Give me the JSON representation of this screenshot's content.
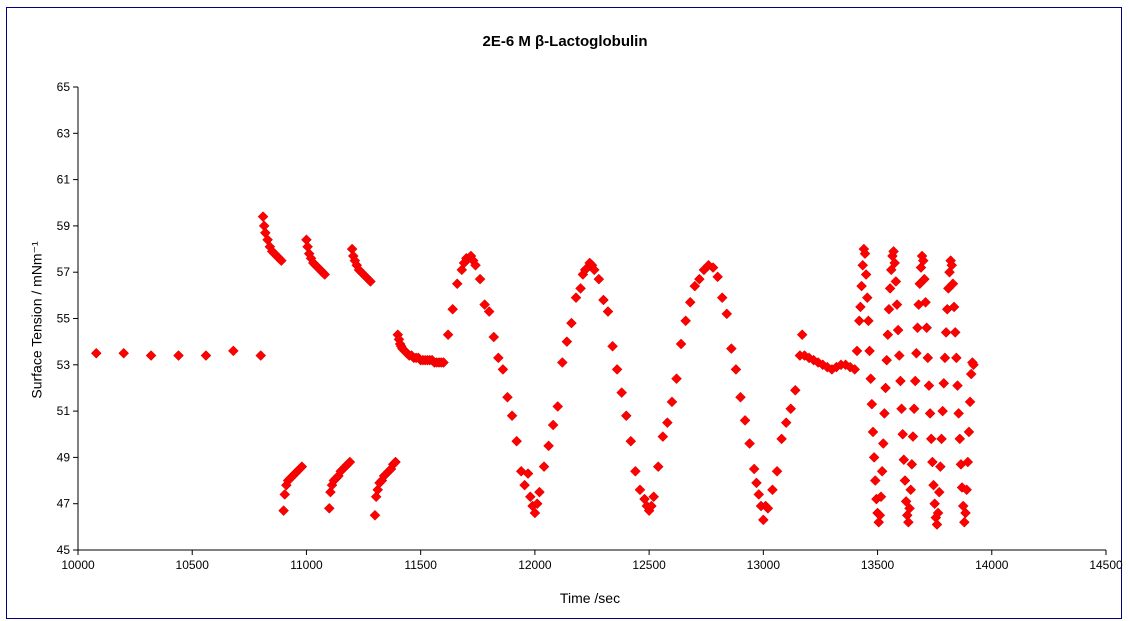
{
  "chart_data": {
    "type": "scatter",
    "title": "2E-6 M β-Lactoglobulin",
    "xlabel": "Time /sec",
    "ylabel": "Surface Tension / mNm⁻¹",
    "xlim": [
      10000,
      14500
    ],
    "ylim": [
      45,
      65
    ],
    "x_ticks": [
      10000,
      10500,
      11000,
      11500,
      12000,
      12500,
      13000,
      13500,
      14000,
      14500
    ],
    "y_ticks": [
      45,
      47,
      49,
      51,
      53,
      55,
      57,
      59,
      61,
      63,
      65
    ],
    "marker": "diamond",
    "marker_color": "#ff0000",
    "grid": false,
    "legend": "none",
    "series": [
      {
        "points": [
          [
            10080,
            53.5
          ],
          [
            10200,
            53.5
          ],
          [
            10320,
            53.4
          ],
          [
            10440,
            53.4
          ],
          [
            10560,
            53.4
          ],
          [
            10680,
            53.6
          ],
          [
            10800,
            53.4
          ],
          [
            10810,
            59.4
          ],
          [
            10815,
            59.0
          ],
          [
            10820,
            58.7
          ],
          [
            10830,
            58.4
          ],
          [
            10840,
            58.1
          ],
          [
            10850,
            57.9
          ],
          [
            10860,
            57.8
          ],
          [
            10870,
            57.7
          ],
          [
            10880,
            57.6
          ],
          [
            10890,
            57.5
          ],
          [
            11000,
            58.4
          ],
          [
            11005,
            58.1
          ],
          [
            11012,
            57.8
          ],
          [
            11020,
            57.6
          ],
          [
            11030,
            57.4
          ],
          [
            11040,
            57.3
          ],
          [
            11050,
            57.2
          ],
          [
            11060,
            57.1
          ],
          [
            11070,
            57.0
          ],
          [
            11080,
            56.9
          ],
          [
            11200,
            58.0
          ],
          [
            11205,
            57.7
          ],
          [
            11212,
            57.5
          ],
          [
            11220,
            57.3
          ],
          [
            11230,
            57.1
          ],
          [
            11240,
            57.0
          ],
          [
            11250,
            56.9
          ],
          [
            11260,
            56.8
          ],
          [
            11270,
            56.7
          ],
          [
            11280,
            56.6
          ],
          [
            10900,
            46.7
          ],
          [
            10905,
            47.4
          ],
          [
            10912,
            47.8
          ],
          [
            10920,
            48.0
          ],
          [
            10930,
            48.1
          ],
          [
            10940,
            48.2
          ],
          [
            10950,
            48.3
          ],
          [
            10960,
            48.4
          ],
          [
            10970,
            48.5
          ],
          [
            10980,
            48.6
          ],
          [
            11100,
            46.8
          ],
          [
            11105,
            47.5
          ],
          [
            11112,
            47.8
          ],
          [
            11120,
            48.0
          ],
          [
            11130,
            48.1
          ],
          [
            11140,
            48.2
          ],
          [
            11150,
            48.4
          ],
          [
            11160,
            48.5
          ],
          [
            11170,
            48.6
          ],
          [
            11180,
            48.7
          ],
          [
            11190,
            48.8
          ],
          [
            11300,
            46.5
          ],
          [
            11305,
            47.3
          ],
          [
            11312,
            47.6
          ],
          [
            11320,
            47.9
          ],
          [
            11330,
            48.0
          ],
          [
            11340,
            48.2
          ],
          [
            11350,
            48.3
          ],
          [
            11360,
            48.4
          ],
          [
            11370,
            48.5
          ],
          [
            11380,
            48.7
          ],
          [
            11390,
            48.8
          ],
          [
            11400,
            54.3
          ],
          [
            11405,
            54.1
          ],
          [
            11410,
            53.9
          ],
          [
            11415,
            53.8
          ],
          [
            11420,
            53.7
          ],
          [
            11430,
            53.6
          ],
          [
            11440,
            53.5
          ],
          [
            11450,
            53.4
          ],
          [
            11460,
            53.4
          ],
          [
            11470,
            53.3
          ],
          [
            11480,
            53.3
          ],
          [
            11490,
            53.3
          ],
          [
            11500,
            53.2
          ],
          [
            11510,
            53.2
          ],
          [
            11520,
            53.2
          ],
          [
            11530,
            53.2
          ],
          [
            11540,
            53.2
          ],
          [
            11550,
            53.2
          ],
          [
            11560,
            53.1
          ],
          [
            11570,
            53.1
          ],
          [
            11580,
            53.1
          ],
          [
            11590,
            53.1
          ],
          [
            11600,
            53.1
          ],
          [
            11620,
            54.3
          ],
          [
            11640,
            55.4
          ],
          [
            11660,
            56.5
          ],
          [
            11680,
            57.1
          ],
          [
            11690,
            57.4
          ],
          [
            11700,
            57.6
          ],
          [
            11710,
            57.6
          ],
          [
            11720,
            57.7
          ],
          [
            11730,
            57.5
          ],
          [
            11740,
            57.3
          ],
          [
            11760,
            56.7
          ],
          [
            11780,
            55.6
          ],
          [
            11800,
            55.3
          ],
          [
            11820,
            54.2
          ],
          [
            11840,
            53.3
          ],
          [
            11860,
            52.8
          ],
          [
            11880,
            51.6
          ],
          [
            11900,
            50.8
          ],
          [
            11920,
            49.7
          ],
          [
            11940,
            48.4
          ],
          [
            11955,
            47.8
          ],
          [
            11970,
            48.3
          ],
          [
            11980,
            47.3
          ],
          [
            11990,
            46.9
          ],
          [
            12000,
            46.6
          ],
          [
            12010,
            47.0
          ],
          [
            12020,
            47.5
          ],
          [
            12040,
            48.6
          ],
          [
            12060,
            49.5
          ],
          [
            12080,
            50.4
          ],
          [
            12100,
            51.2
          ],
          [
            12120,
            53.1
          ],
          [
            12140,
            54.0
          ],
          [
            12160,
            54.8
          ],
          [
            12180,
            55.9
          ],
          [
            12200,
            56.3
          ],
          [
            12210,
            56.9
          ],
          [
            12220,
            57.1
          ],
          [
            12230,
            57.2
          ],
          [
            12240,
            57.4
          ],
          [
            12250,
            57.3
          ],
          [
            12260,
            57.1
          ],
          [
            12280,
            56.7
          ],
          [
            12300,
            55.8
          ],
          [
            12320,
            55.3
          ],
          [
            12340,
            53.8
          ],
          [
            12360,
            52.8
          ],
          [
            12380,
            51.8
          ],
          [
            12400,
            50.8
          ],
          [
            12420,
            49.7
          ],
          [
            12440,
            48.4
          ],
          [
            12460,
            47.6
          ],
          [
            12480,
            47.2
          ],
          [
            12490,
            46.9
          ],
          [
            12500,
            46.7
          ],
          [
            12510,
            46.9
          ],
          [
            12520,
            47.3
          ],
          [
            12540,
            48.6
          ],
          [
            12560,
            49.9
          ],
          [
            12580,
            50.5
          ],
          [
            12600,
            51.4
          ],
          [
            12620,
            52.4
          ],
          [
            12640,
            53.9
          ],
          [
            12660,
            54.9
          ],
          [
            12680,
            55.7
          ],
          [
            12700,
            56.4
          ],
          [
            12720,
            56.7
          ],
          [
            12740,
            57.1
          ],
          [
            12760,
            57.3
          ],
          [
            12780,
            57.2
          ],
          [
            12800,
            56.8
          ],
          [
            12820,
            55.9
          ],
          [
            12840,
            55.2
          ],
          [
            12860,
            53.7
          ],
          [
            12880,
            52.8
          ],
          [
            12900,
            51.6
          ],
          [
            12920,
            50.6
          ],
          [
            12940,
            49.6
          ],
          [
            12960,
            48.5
          ],
          [
            12970,
            47.9
          ],
          [
            12980,
            47.4
          ],
          [
            12990,
            46.9
          ],
          [
            13000,
            46.3
          ],
          [
            13010,
            46.9
          ],
          [
            13020,
            46.8
          ],
          [
            13040,
            47.6
          ],
          [
            13060,
            48.4
          ],
          [
            13080,
            49.8
          ],
          [
            13100,
            50.5
          ],
          [
            13120,
            51.1
          ],
          [
            13140,
            51.9
          ],
          [
            13160,
            53.4
          ],
          [
            13170,
            54.3
          ],
          [
            13180,
            53.4
          ],
          [
            13200,
            53.3
          ],
          [
            13220,
            53.2
          ],
          [
            13240,
            53.1
          ],
          [
            13260,
            53.0
          ],
          [
            13280,
            52.9
          ],
          [
            13300,
            52.8
          ],
          [
            13320,
            52.9
          ],
          [
            13340,
            53.0
          ],
          [
            13360,
            53.0
          ],
          [
            13380,
            52.9
          ],
          [
            13400,
            52.8
          ],
          [
            13410,
            53.6
          ],
          [
            13420,
            54.9
          ],
          [
            13425,
            55.5
          ],
          [
            13430,
            56.4
          ],
          [
            13435,
            57.3
          ],
          [
            13440,
            58.0
          ],
          [
            13445,
            57.8
          ],
          [
            13450,
            56.9
          ],
          [
            13455,
            55.9
          ],
          [
            13460,
            54.9
          ],
          [
            13465,
            53.6
          ],
          [
            13470,
            52.4
          ],
          [
            13475,
            51.3
          ],
          [
            13480,
            50.1
          ],
          [
            13485,
            49.0
          ],
          [
            13490,
            48.0
          ],
          [
            13495,
            47.2
          ],
          [
            13500,
            46.6
          ],
          [
            13505,
            46.2
          ],
          [
            13510,
            46.5
          ],
          [
            13515,
            47.3
          ],
          [
            13520,
            48.4
          ],
          [
            13525,
            49.6
          ],
          [
            13530,
            50.9
          ],
          [
            13535,
            52.0
          ],
          [
            13540,
            53.2
          ],
          [
            13545,
            54.3
          ],
          [
            13550,
            55.4
          ],
          [
            13555,
            56.3
          ],
          [
            13560,
            57.1
          ],
          [
            13565,
            57.7
          ],
          [
            13570,
            57.9
          ],
          [
            13575,
            57.4
          ],
          [
            13580,
            56.6
          ],
          [
            13585,
            55.6
          ],
          [
            13590,
            54.5
          ],
          [
            13595,
            53.4
          ],
          [
            13600,
            52.3
          ],
          [
            13605,
            51.1
          ],
          [
            13610,
            50.0
          ],
          [
            13615,
            48.9
          ],
          [
            13620,
            48.0
          ],
          [
            13625,
            47.1
          ],
          [
            13630,
            46.5
          ],
          [
            13635,
            46.2
          ],
          [
            13640,
            46.8
          ],
          [
            13645,
            47.6
          ],
          [
            13650,
            48.7
          ],
          [
            13655,
            49.9
          ],
          [
            13660,
            51.1
          ],
          [
            13665,
            52.3
          ],
          [
            13670,
            53.5
          ],
          [
            13675,
            54.6
          ],
          [
            13680,
            55.6
          ],
          [
            13685,
            56.5
          ],
          [
            13690,
            57.2
          ],
          [
            13695,
            57.7
          ],
          [
            13700,
            57.5
          ],
          [
            13705,
            56.7
          ],
          [
            13710,
            55.7
          ],
          [
            13715,
            54.6
          ],
          [
            13720,
            53.3
          ],
          [
            13725,
            52.1
          ],
          [
            13730,
            50.9
          ],
          [
            13735,
            49.8
          ],
          [
            13740,
            48.8
          ],
          [
            13745,
            47.8
          ],
          [
            13750,
            47.0
          ],
          [
            13755,
            46.4
          ],
          [
            13760,
            46.1
          ],
          [
            13765,
            46.6
          ],
          [
            13770,
            47.5
          ],
          [
            13775,
            48.6
          ],
          [
            13780,
            49.8
          ],
          [
            13785,
            51.0
          ],
          [
            13790,
            52.2
          ],
          [
            13795,
            53.3
          ],
          [
            13800,
            54.4
          ],
          [
            13805,
            55.4
          ],
          [
            13810,
            56.3
          ],
          [
            13815,
            57.0
          ],
          [
            13820,
            57.5
          ],
          [
            13825,
            57.3
          ],
          [
            13830,
            56.5
          ],
          [
            13835,
            55.5
          ],
          [
            13840,
            54.4
          ],
          [
            13845,
            53.3
          ],
          [
            13850,
            52.1
          ],
          [
            13855,
            50.9
          ],
          [
            13860,
            49.8
          ],
          [
            13865,
            48.7
          ],
          [
            13870,
            47.7
          ],
          [
            13875,
            46.9
          ],
          [
            13880,
            46.2
          ],
          [
            13885,
            46.6
          ],
          [
            13890,
            47.6
          ],
          [
            13895,
            48.8
          ],
          [
            13900,
            50.1
          ],
          [
            13905,
            51.4
          ],
          [
            13910,
            52.6
          ],
          [
            13915,
            53.1
          ],
          [
            13920,
            53.0
          ]
        ]
      }
    ]
  }
}
